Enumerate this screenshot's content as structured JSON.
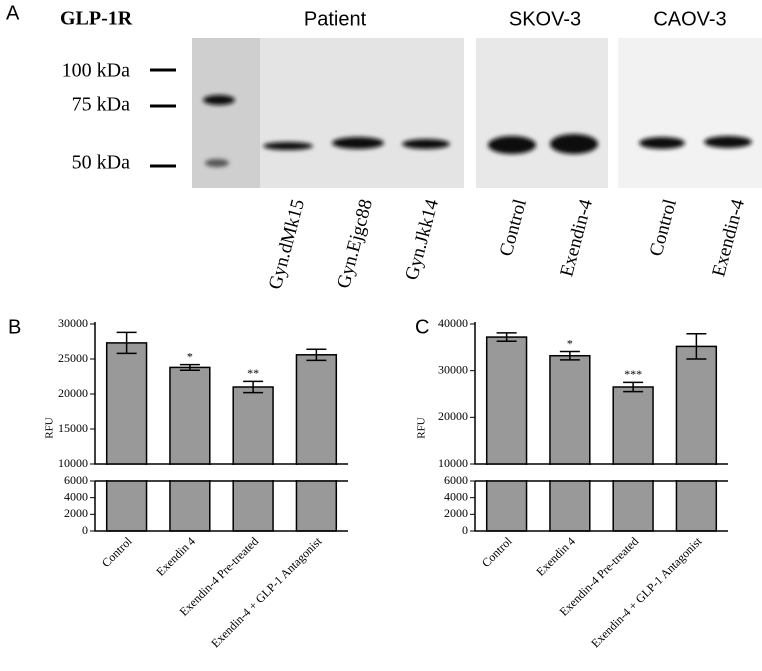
{
  "panel_a": {
    "label": "A",
    "title": "GLP-1R",
    "groups": [
      "Patient",
      "SKOV-3",
      "CAOV-3"
    ],
    "markers": [
      "100 kDa",
      "75 kDa",
      "50 kDa"
    ],
    "lanes": [
      "Gyn.dMk15",
      "Gyn.Ejgc88",
      "Gyn.Jkk14",
      "Control",
      "Exendin-4",
      "Control",
      "Exendin-4"
    ]
  },
  "chart_data": [
    {
      "type": "bar",
      "panel": "B",
      "ylabel": "RFU",
      "categories": [
        "Control",
        "Exendin 4",
        "Exendin-4 Pre-treated",
        "Exendin-4 + GLP-1 Antagonist"
      ],
      "values": [
        27300,
        23800,
        21000,
        25600
      ],
      "errors": [
        1500,
        400,
        800,
        800
      ],
      "significance": [
        null,
        "*",
        "**",
        null
      ],
      "color": "#999999",
      "ylim": [
        0,
        30000
      ],
      "ybreak": [
        6000,
        10000
      ],
      "yticks": [
        0,
        2000,
        4000,
        6000,
        10000,
        15000,
        20000,
        25000,
        30000
      ]
    },
    {
      "type": "bar",
      "panel": "C",
      "ylabel": "RFU",
      "categories": [
        "Control",
        "Exendin 4",
        "Exendin-4 Pre-treated",
        "Exendin-4 + GLP-1 Antagonist"
      ],
      "values": [
        37200,
        33200,
        26500,
        35200
      ],
      "errors": [
        900,
        900,
        1000,
        2700
      ],
      "significance": [
        null,
        "*",
        "***",
        null
      ],
      "color": "#999999",
      "ylim": [
        0,
        40000
      ],
      "ybreak": [
        6000,
        10000
      ],
      "yticks": [
        0,
        2000,
        4000,
        6000,
        10000,
        20000,
        30000,
        40000
      ]
    }
  ]
}
